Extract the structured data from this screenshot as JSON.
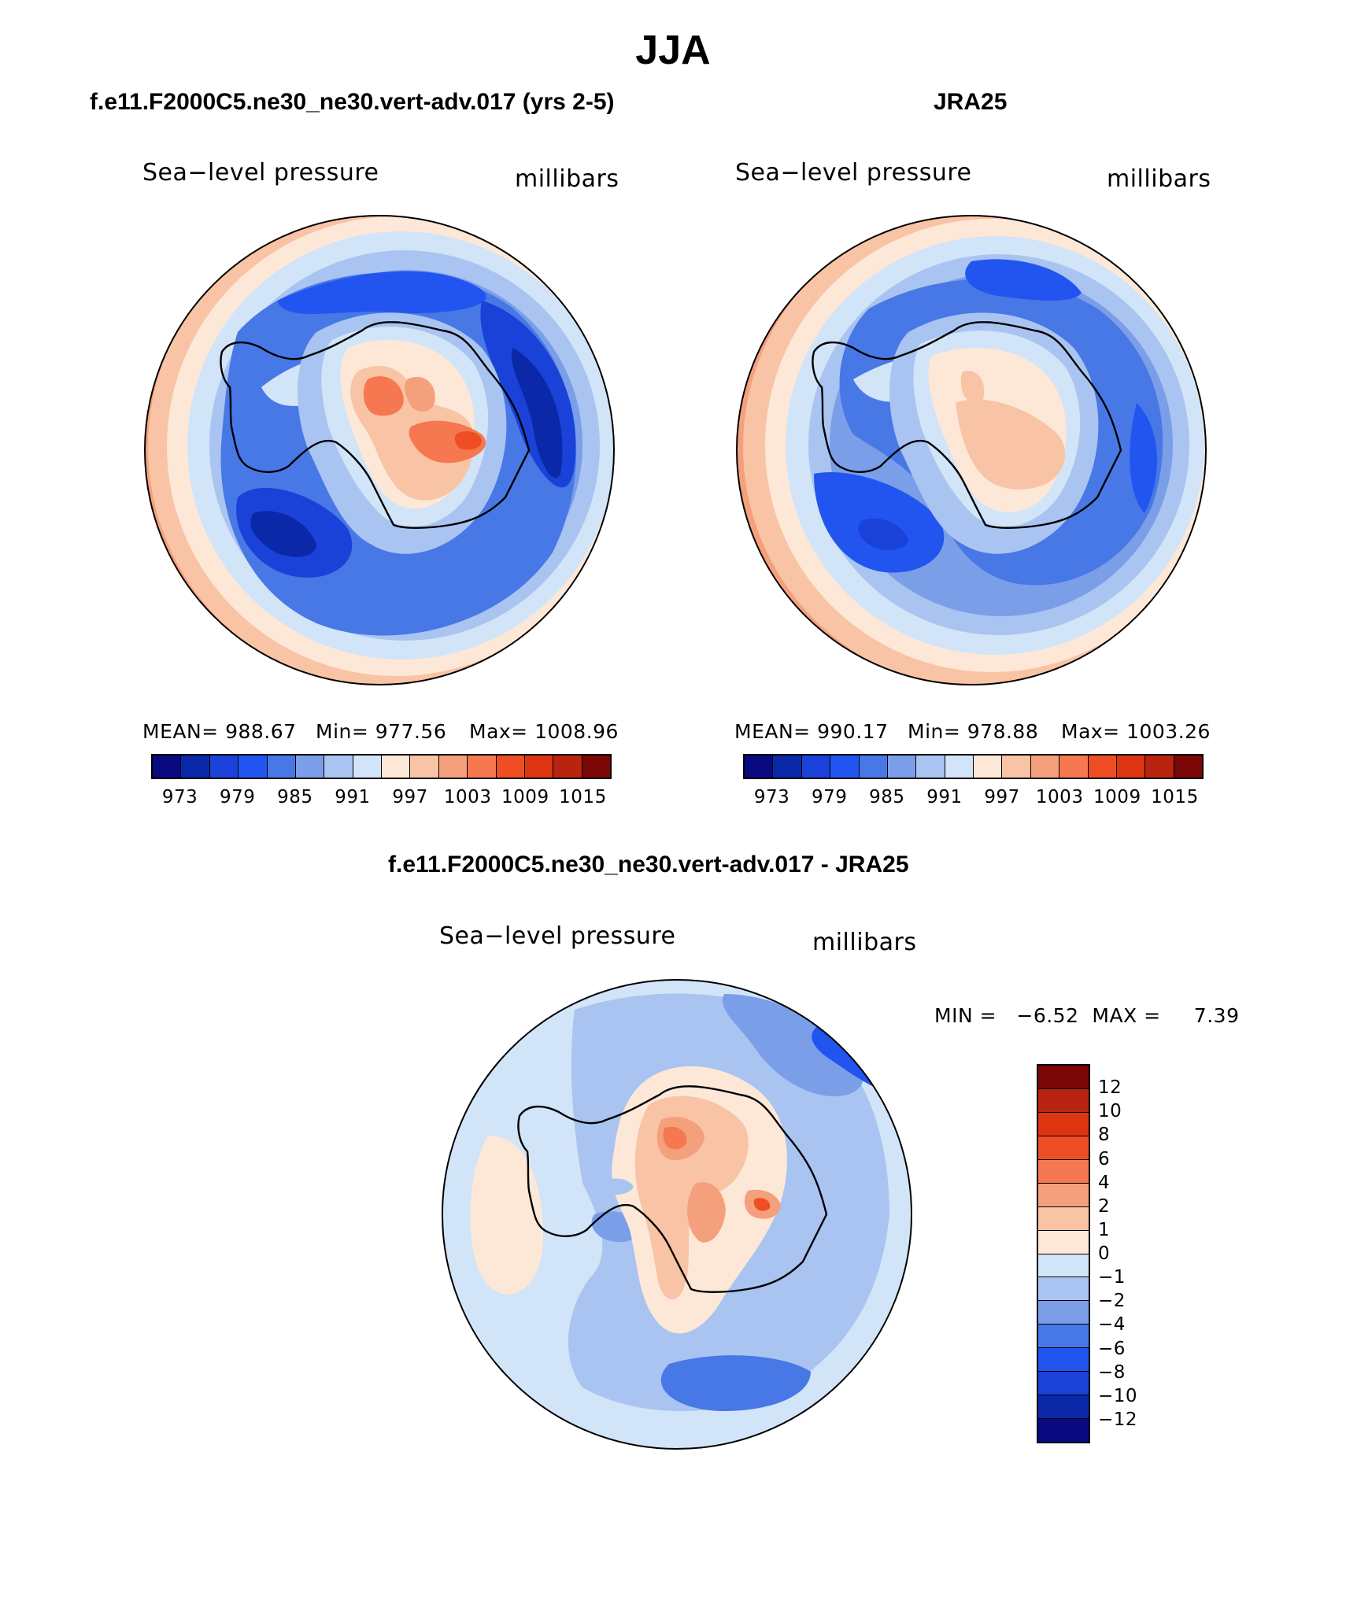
{
  "title": "JJA",
  "panels": [
    {
      "heading": "f.e11.F2000C5.ne30_ne30.vert-adv.017 (yrs 2-5)",
      "variable": "Sea−level pressure",
      "units": "millibars",
      "stats": {
        "mean": "MEAN= 988.67",
        "min": "Min= 977.56",
        "max": "Max= 1008.96"
      }
    },
    {
      "heading": "JRA25",
      "variable": "Sea−level pressure",
      "units": "millibars",
      "stats": {
        "mean": "MEAN= 990.17",
        "min": "Min= 978.88",
        "max": "Max= 1003.26"
      }
    }
  ],
  "diff": {
    "heading": "f.e11.F2000C5.ne30_ne30.vert-adv.017 - JRA25",
    "variable": "Sea−level pressure",
    "units": "millibars",
    "minmax": "MIN =   −6.52  MAX =     7.39"
  },
  "colorbar_abs": {
    "colors": [
      "#0a0a80",
      "#0a28a8",
      "#1a42d8",
      "#2255f0",
      "#4878e6",
      "#7a9ee8",
      "#a9c4f0",
      "#d2e4f7",
      "#fde8d8",
      "#f9c3a5",
      "#f5a07d",
      "#f57850",
      "#ef4e25",
      "#dd3512",
      "#b82410",
      "#7a0606"
    ],
    "labels": [
      "973",
      "979",
      "985",
      "991",
      "997",
      "1003",
      "1009",
      "1015"
    ]
  },
  "colorbar_diff": {
    "colors": [
      "#7a0606",
      "#b82410",
      "#dd3512",
      "#ef4e25",
      "#f57850",
      "#f5a07d",
      "#f9c3a5",
      "#fde8d8",
      "#d2e4f7",
      "#a9c4f0",
      "#7a9ee8",
      "#4878e6",
      "#2255f0",
      "#1a42d8",
      "#0a28a8",
      "#0a0a80"
    ],
    "labels": [
      "12",
      "10",
      "8",
      "6",
      "4",
      "2",
      "1",
      "0",
      "−1",
      "−2",
      "−4",
      "−6",
      "−8",
      "−10",
      "−12"
    ]
  }
}
